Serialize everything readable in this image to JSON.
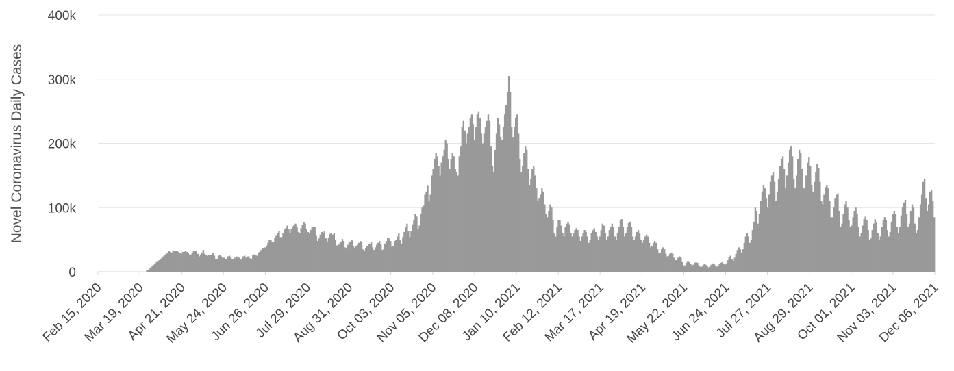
{
  "chart_data": {
    "type": "bar",
    "title": "",
    "xlabel": "",
    "ylabel": "Novel Coronavirus Daily Cases",
    "ylim": [
      0,
      400000
    ],
    "y_ticks": [
      0,
      100000,
      200000,
      300000,
      400000
    ],
    "y_tick_labels": [
      "0",
      "100k",
      "200k",
      "300k",
      "400k"
    ],
    "x_tick_labels": [
      "Feb 15, 2020",
      "Mar 19, 2020",
      "Apr 21, 2020",
      "May 24, 2020",
      "Jun 26, 2020",
      "Jul 29, 2020",
      "Aug 31, 2020",
      "Oct 03, 2020",
      "Nov 05, 2020",
      "Dec 08, 2020",
      "Jan 10, 2021",
      "Feb 12, 2021",
      "Mar 17, 2021",
      "Apr 19, 2021",
      "May 22, 2021",
      "Jun 24, 2021",
      "Jul 27, 2021",
      "Aug 29, 2021",
      "Oct 01, 2021",
      "Nov 03, 2021",
      "Dec 06, 2021"
    ],
    "x_start": "Feb 15, 2020",
    "x_end": "Dec 06, 2021",
    "bar_color": "#999999",
    "grid": true,
    "legend": "none",
    "series": [
      {
        "values": [
          0,
          0,
          0,
          0,
          0,
          0,
          0,
          0,
          0,
          0,
          0,
          0,
          0,
          0,
          0,
          0,
          0,
          0,
          0,
          0,
          0,
          0,
          0,
          0,
          0,
          0,
          0,
          0,
          0,
          0,
          0,
          0,
          0,
          0,
          0,
          2000,
          3000,
          5000,
          7000,
          9000,
          11000,
          13000,
          15000,
          17000,
          18000,
          20000,
          22000,
          24000,
          26000,
          28000,
          30000,
          33000,
          31000,
          30000,
          33000,
          33000,
          33000,
          33000,
          31000,
          29000,
          28000,
          31000,
          31000,
          33000,
          31000,
          30000,
          27000,
          27000,
          30000,
          33000,
          33000,
          33000,
          28000,
          24000,
          27000,
          30000,
          34000,
          28000,
          26000,
          25000,
          26000,
          26000,
          26000,
          29000,
          25000,
          20000,
          20000,
          25000,
          26000,
          24000,
          22000,
          22000,
          20000,
          20000,
          24000,
          25000,
          22000,
          20000,
          20000,
          22000,
          24000,
          23000,
          22000,
          19000,
          20000,
          24000,
          25000,
          22000,
          24000,
          24000,
          21000,
          20000,
          26000,
          27000,
          26000,
          25000,
          30000,
          31000,
          34000,
          37000,
          36000,
          38000,
          41000,
          45000,
          49000,
          50000,
          46000,
          46000,
          53000,
          56000,
          60000,
          63000,
          54000,
          54000,
          60000,
          66000,
          68000,
          72000,
          66000,
          60000,
          67000,
          71000,
          73000,
          75000,
          70000,
          62000,
          60000,
          68000,
          73000,
          77000,
          75000,
          66000,
          62000,
          60000,
          65000,
          69000,
          70000,
          70000,
          56000,
          48000,
          52000,
          58000,
          62000,
          60000,
          63000,
          52000,
          46000,
          53000,
          59000,
          60000,
          58000,
          60000,
          50000,
          41000,
          42000,
          44000,
          47000,
          51000,
          48000,
          38000,
          36000,
          42000,
          46000,
          47000,
          49000,
          40000,
          37000,
          40000,
          42000,
          45000,
          48000,
          46000,
          35000,
          33000,
          37000,
          40000,
          43000,
          44000,
          47000,
          38000,
          34000,
          38000,
          42000,
          45000,
          48000,
          43000,
          34000,
          35000,
          44000,
          48000,
          53000,
          52000,
          48000,
          39000,
          40000,
          48000,
          50000,
          55000,
          60000,
          49000,
          44000,
          54000,
          62000,
          70000,
          75000,
          64000,
          54000,
          64000,
          74000,
          80000,
          90000,
          86000,
          66000,
          72000,
          90000,
          100000,
          103000,
          120000,
          125000,
          134000,
          110000,
          120000,
          150000,
          160000,
          175000,
          185000,
          180000,
          165000,
          150000,
          170000,
          180000,
          190000,
          205000,
          200000,
          175000,
          160000,
          175000,
          185000,
          180000,
          160000,
          155000,
          150000,
          180000,
          195000,
          225000,
          235000,
          220000,
          200000,
          215000,
          225000,
          240000,
          245000,
          230000,
          205000,
          225000,
          245000,
          250000,
          240000,
          215000,
          200000,
          215000,
          225000,
          235000,
          245000,
          235000,
          195000,
          165000,
          155000,
          190000,
          215000,
          240000,
          230000,
          210000,
          205000,
          225000,
          245000,
          260000,
          280000,
          305000,
          280000,
          225000,
          210000,
          225000,
          240000,
          245000,
          215000,
          175000,
          155000,
          165000,
          185000,
          195000,
          190000,
          160000,
          135000,
          145000,
          160000,
          165000,
          150000,
          130000,
          110000,
          115000,
          120000,
          130000,
          125000,
          105000,
          90000,
          85000,
          95000,
          105000,
          100000,
          80000,
          60000,
          55000,
          70000,
          80000,
          80000,
          72000,
          60000,
          55000,
          70000,
          75000,
          78000,
          74000,
          60000,
          55000,
          60000,
          65000,
          68000,
          65000,
          55000,
          48000,
          55000,
          60000,
          65000,
          62000,
          55000,
          45000,
          50000,
          60000,
          65000,
          68000,
          62000,
          55000,
          50000,
          55000,
          65000,
          75000,
          72000,
          60000,
          50000,
          55000,
          65000,
          70000,
          75000,
          70000,
          55000,
          50000,
          60000,
          70000,
          80000,
          82000,
          70000,
          55000,
          60000,
          70000,
          76000,
          78000,
          70000,
          55000,
          50000,
          55000,
          62000,
          65000,
          60000,
          50000,
          45000,
          50000,
          55000,
          58000,
          55000,
          45000,
          38000,
          40000,
          45000,
          48000,
          45000,
          35000,
          30000,
          30000,
          35000,
          38000,
          35000,
          28000,
          24000,
          25000,
          28000,
          30000,
          28000,
          22000,
          18000,
          18000,
          22000,
          24000,
          22000,
          15000,
          10000,
          10000,
          14000,
          16000,
          15000,
          12000,
          10000,
          11000,
          14000,
          15000,
          14000,
          10000,
          8000,
          8000,
          10000,
          12000,
          11000,
          9000,
          7000,
          8000,
          11000,
          13000,
          12000,
          10000,
          8000,
          9000,
          12000,
          14000,
          15000,
          13000,
          11000,
          13000,
          18000,
          23000,
          25000,
          20000,
          16000,
          22000,
          28000,
          34000,
          38000,
          35000,
          30000,
          35000,
          45000,
          55000,
          60000,
          55000,
          45000,
          50000,
          65000,
          78000,
          100000,
          95000,
          75000,
          90000,
          110000,
          125000,
          135000,
          130000,
          115000,
          100000,
          120000,
          140000,
          150000,
          155000,
          140000,
          110000,
          125000,
          145000,
          165000,
          175000,
          180000,
          160000,
          130000,
          150000,
          170000,
          190000,
          195000,
          180000,
          145000,
          130000,
          150000,
          175000,
          190000,
          185000,
          160000,
          130000,
          130000,
          150000,
          170000,
          178000,
          165000,
          135000,
          125000,
          140000,
          155000,
          168000,
          162000,
          140000,
          110000,
          105000,
          120000,
          132000,
          135000,
          130000,
          110000,
          85000,
          85000,
          100000,
          115000,
          120000,
          122000,
          95000,
          70000,
          75000,
          90000,
          105000,
          110000,
          100000,
          80000,
          70000,
          72000,
          85000,
          95000,
          100000,
          90000,
          70000,
          55000,
          60000,
          72000,
          82000,
          86000,
          80000,
          65000,
          50000,
          52000,
          65000,
          75000,
          82000,
          78000,
          60000,
          50000,
          55000,
          70000,
          80000,
          85000,
          80000,
          65000,
          55000,
          62000,
          78000,
          90000,
          95000,
          90000,
          70000,
          60000,
          70000,
          88000,
          100000,
          108000,
          112000,
          90000,
          70000,
          75000,
          95000,
          105000,
          100000,
          75000,
          60000,
          65000,
          85000,
          105000,
          120000,
          140000,
          145000,
          115000,
          95000,
          105000,
          125000,
          128000,
          110000,
          85000
        ]
      }
    ]
  }
}
